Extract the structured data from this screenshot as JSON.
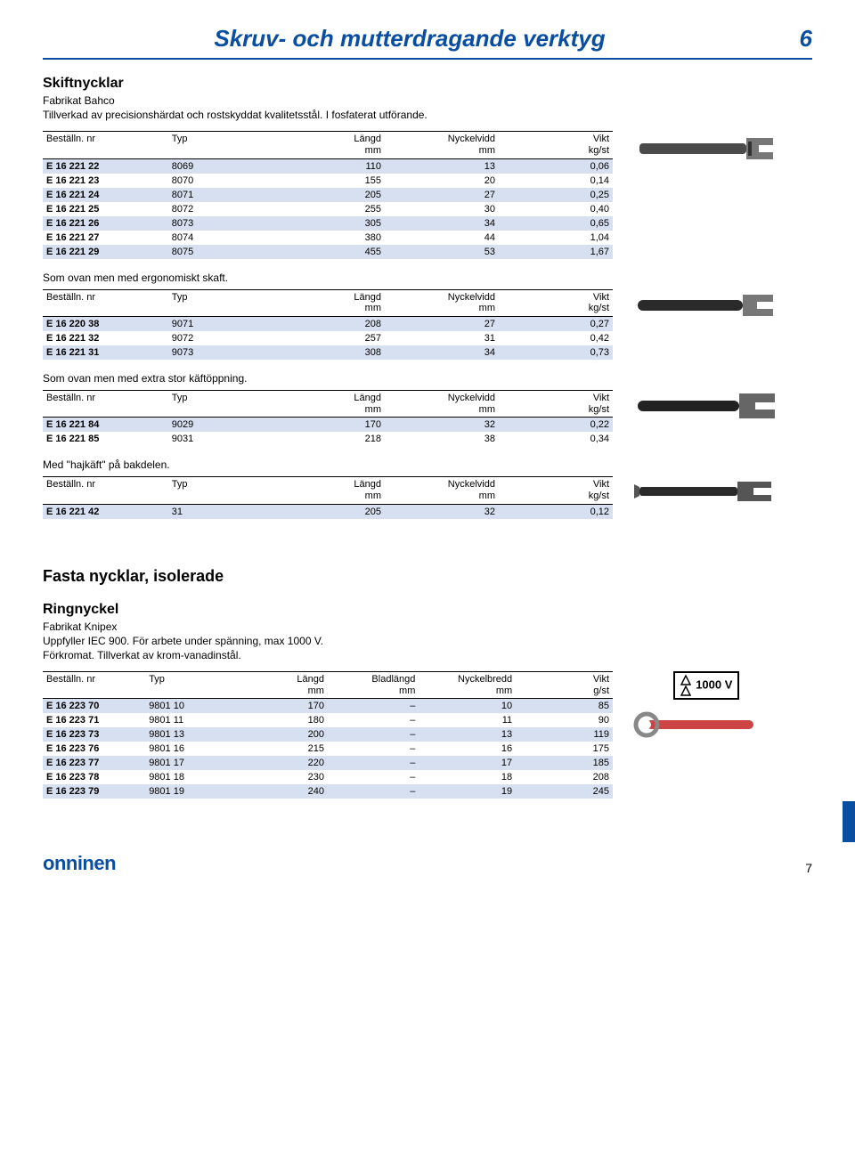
{
  "header": {
    "title": "Skruv- och mutterdragande verktyg",
    "pageTop": "6"
  },
  "colors": {
    "brand": "#0a4ea2",
    "stripe": "#d7e0f1"
  },
  "footer": {
    "logo": "onninen",
    "page": "7"
  },
  "badge": "1000 V",
  "sections": {
    "skiftnycklar": {
      "title": "Skiftnycklar",
      "sub": "Fabrikat Bahco\nTillverkad av precisionshärdat och rostskyddat kvalitetsstål. I fosfaterat utförande.",
      "th": [
        "Beställn. nr",
        "Typ",
        "Längd",
        "Nyckelvidd",
        "Vikt"
      ],
      "thu": [
        "",
        "",
        "mm",
        "mm",
        "kg/st"
      ],
      "rows": [
        [
          "E 16 221 22",
          "8069",
          "110",
          "13",
          "0,06"
        ],
        [
          "E 16 221 23",
          "8070",
          "155",
          "20",
          "0,14"
        ],
        [
          "E 16 221 24",
          "8071",
          "205",
          "27",
          "0,25"
        ],
        [
          "E 16 221 25",
          "8072",
          "255",
          "30",
          "0,40"
        ],
        [
          "E 16 221 26",
          "8073",
          "305",
          "34",
          "0,65"
        ],
        [
          "E 16 221 27",
          "8074",
          "380",
          "44",
          "1,04"
        ],
        [
          "E 16 221 29",
          "8075",
          "455",
          "53",
          "1,67"
        ]
      ]
    },
    "ergo": {
      "note": "Som ovan men med ergonomiskt skaft.",
      "th": [
        "Beställn. nr",
        "Typ",
        "Längd",
        "Nyckelvidd",
        "Vikt"
      ],
      "thu": [
        "",
        "",
        "mm",
        "mm",
        "kg/st"
      ],
      "rows": [
        [
          "E 16 220 38",
          "9071",
          "208",
          "27",
          "0,27"
        ],
        [
          "E 16 221 32",
          "9072",
          "257",
          "31",
          "0,42"
        ],
        [
          "E 16 221 31",
          "9073",
          "308",
          "34",
          "0,73"
        ]
      ]
    },
    "kaft": {
      "note": "Som ovan men med extra stor käftöppning.",
      "th": [
        "Beställn. nr",
        "Typ",
        "Längd",
        "Nyckelvidd",
        "Vikt"
      ],
      "thu": [
        "",
        "",
        "mm",
        "mm",
        "kg/st"
      ],
      "rows": [
        [
          "E 16 221 84",
          "9029",
          "170",
          "32",
          "0,22"
        ],
        [
          "E 16 221 85",
          "9031",
          "218",
          "38",
          "0,34"
        ]
      ]
    },
    "hajkaft": {
      "note": "Med \"hajkäft\" på bakdelen.",
      "th": [
        "Beställn. nr",
        "Typ",
        "Längd",
        "Nyckelvidd",
        "Vikt"
      ],
      "thu": [
        "",
        "",
        "mm",
        "mm",
        "kg/st"
      ],
      "rows": [
        [
          "E 16 221 42",
          "31",
          "205",
          "32",
          "0,12"
        ]
      ]
    },
    "fastaTitle": "Fasta nycklar, isolerade",
    "ring": {
      "title": "Ringnyckel",
      "sub": "Fabrikat Knipex\nUppfyller IEC 900. För arbete under spänning, max 1000 V.\nFörkromat. Tillverkat av krom-vanadinstål.",
      "th": [
        "Beställn. nr",
        "Typ",
        "Längd",
        "Bladlängd",
        "Nyckelbredd",
        "Vikt"
      ],
      "thu": [
        "",
        "",
        "mm",
        "mm",
        "mm",
        "g/st"
      ],
      "rows": [
        [
          "E 16 223 70",
          "9801 10",
          "170",
          "–",
          "10",
          "85"
        ],
        [
          "E 16 223 71",
          "9801 11",
          "180",
          "–",
          "11",
          "90"
        ],
        [
          "E 16 223 73",
          "9801 13",
          "200",
          "–",
          "13",
          "119"
        ],
        [
          "E 16 223 76",
          "9801 16",
          "215",
          "–",
          "16",
          "175"
        ],
        [
          "E 16 223 77",
          "9801 17",
          "220",
          "–",
          "17",
          "185"
        ],
        [
          "E 16 223 78",
          "9801 18",
          "230",
          "–",
          "18",
          "208"
        ],
        [
          "E 16 223 79",
          "9801 19",
          "240",
          "–",
          "19",
          "245"
        ]
      ]
    }
  },
  "tableLayout": {
    "widths4": [
      "22%",
      "18%",
      "20%",
      "20%",
      "20%"
    ],
    "widths5": [
      "18%",
      "16%",
      "16%",
      "16%",
      "17%",
      "17%"
    ]
  }
}
